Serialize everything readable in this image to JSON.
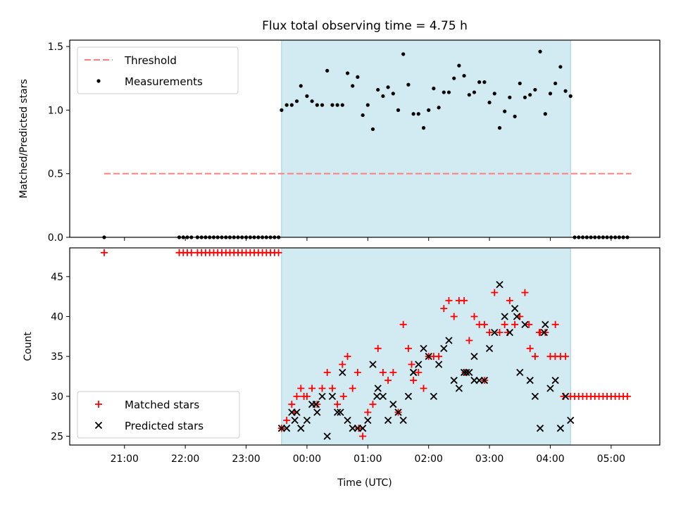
{
  "chart_data": [
    {
      "type": "scatter",
      "title": "Flux total observing time = 4.75 h",
      "xlabel": "",
      "ylabel": "Matched/Predicted stars",
      "ylim": [
        0,
        1.55
      ],
      "yticks": [
        "0.0",
        "0.5",
        "1.0",
        "1.5"
      ],
      "shaded_interval": {
        "start": 23.583,
        "end": 28.333,
        "color": "#add8e6"
      },
      "grid": false,
      "legend_position": "upper-left",
      "series": [
        {
          "name": "Threshold",
          "style": "dashed-line",
          "color": "#ff7f7f",
          "x": [
            20.667,
            29.333
          ],
          "y": [
            0.5,
            0.5
          ]
        },
        {
          "name": "Measurements",
          "style": "dot",
          "color": "#000000",
          "x": [
            20.667,
            21.9,
            21.967,
            22.033,
            22.1,
            22.2,
            22.267,
            22.333,
            22.4,
            22.467,
            22.533,
            22.6,
            22.667,
            22.733,
            22.8,
            22.867,
            22.933,
            23.0,
            23.067,
            23.133,
            23.2,
            23.267,
            23.333,
            23.4,
            23.467,
            23.533,
            23.583,
            23.667,
            23.75,
            23.833,
            23.9,
            24.0,
            24.083,
            24.167,
            24.25,
            24.333,
            24.417,
            24.5,
            24.583,
            24.667,
            24.75,
            24.833,
            24.917,
            25.0,
            25.083,
            25.167,
            25.25,
            25.333,
            25.417,
            25.5,
            25.583,
            25.667,
            25.75,
            25.833,
            25.917,
            26.0,
            26.083,
            26.167,
            26.25,
            26.333,
            26.417,
            26.5,
            26.583,
            26.667,
            26.75,
            26.833,
            26.917,
            27.0,
            27.083,
            27.167,
            27.25,
            27.333,
            27.417,
            27.5,
            27.583,
            27.667,
            27.75,
            27.833,
            27.917,
            28.0,
            28.083,
            28.167,
            28.25,
            28.333,
            28.4,
            28.467,
            28.533,
            28.6,
            28.667,
            28.733,
            28.8,
            28.867,
            28.933,
            29.0,
            29.067,
            29.133,
            29.2,
            29.267
          ],
          "y": [
            0,
            0,
            0,
            0,
            0,
            0,
            0,
            0,
            0,
            0,
            0,
            0,
            0,
            0,
            0,
            0,
            0,
            0,
            0,
            0,
            0,
            0,
            0,
            0,
            0,
            0,
            1.0,
            1.04,
            1.04,
            1.07,
            1.19,
            1.11,
            1.07,
            1.04,
            1.04,
            1.31,
            1.04,
            1.04,
            1.04,
            1.29,
            1.19,
            1.26,
            0.96,
            1.04,
            0.85,
            1.16,
            1.11,
            1.18,
            1.13,
            1.0,
            1.44,
            1.2,
            0.97,
            0.97,
            0.86,
            1.0,
            1.17,
            1.02,
            1.14,
            1.14,
            1.25,
            1.35,
            1.27,
            1.12,
            1.14,
            1.22,
            1.22,
            1.06,
            1.13,
            0.86,
            0.99,
            1.1,
            0.95,
            1.21,
            1.1,
            1.12,
            1.16,
            1.46,
            0.97,
            1.13,
            1.21,
            1.34,
            1.15,
            1.11,
            0,
            0,
            0,
            0,
            0,
            0,
            0,
            0,
            0,
            0,
            0,
            0,
            0,
            0
          ]
        }
      ]
    },
    {
      "type": "scatter",
      "title": "",
      "xlabel": "Time (UTC)",
      "ylabel": "Count",
      "ylim": [
        23.9,
        48.6
      ],
      "yticks": [
        "25",
        "30",
        "35",
        "40",
        "45"
      ],
      "xticks": [
        "21:00",
        "22:00",
        "23:00",
        "00:00",
        "01:00",
        "02:00",
        "03:00",
        "04:00",
        "05:00"
      ],
      "shaded_interval": {
        "start": 23.583,
        "end": 28.333,
        "color": "#add8e6"
      },
      "grid": false,
      "legend_position": "lower-left",
      "series": [
        {
          "name": "Matched stars",
          "style": "plus",
          "color": "#ff0000",
          "x": [
            20.667,
            21.9,
            21.967,
            22.033,
            22.1,
            22.2,
            22.267,
            22.333,
            22.4,
            22.467,
            22.533,
            22.6,
            22.667,
            22.733,
            22.8,
            22.867,
            22.933,
            23.0,
            23.067,
            23.133,
            23.2,
            23.267,
            23.333,
            23.4,
            23.467,
            23.533,
            23.583,
            23.667,
            23.75,
            23.833,
            23.9,
            24.0,
            24.083,
            24.167,
            24.25,
            24.333,
            24.417,
            24.5,
            24.583,
            24.667,
            24.75,
            24.833,
            24.917,
            25.0,
            25.083,
            25.167,
            25.25,
            25.333,
            25.417,
            25.5,
            25.583,
            25.667,
            25.75,
            25.833,
            25.917,
            26.0,
            26.083,
            26.167,
            26.25,
            26.333,
            26.417,
            26.5,
            26.583,
            26.667,
            26.75,
            26.833,
            26.917,
            27.0,
            27.083,
            27.167,
            27.25,
            27.333,
            27.417,
            27.5,
            27.583,
            27.667,
            27.75,
            27.833,
            27.917,
            28.0,
            28.083,
            28.167,
            28.25,
            28.333,
            28.4,
            28.467,
            28.533,
            28.6,
            28.667,
            28.733,
            28.8,
            28.867,
            28.933,
            29.0,
            29.067,
            29.133,
            29.2,
            29.267,
            23.8,
            23.95,
            24.6,
            24.85,
            25.72,
            26.6,
            26.92,
            27.3,
            27.65,
            27.82,
            28.08,
            28.22
          ],
          "y": [
            48,
            48,
            48,
            48,
            48,
            48,
            48,
            48,
            48,
            48,
            48,
            48,
            48,
            48,
            48,
            48,
            48,
            48,
            48,
            48,
            48,
            48,
            48,
            48,
            48,
            48,
            26,
            27,
            29,
            30,
            31,
            30,
            31,
            29,
            31,
            33,
            31,
            29,
            34,
            35,
            31,
            33,
            25,
            28,
            29,
            36,
            33,
            32,
            33,
            28,
            39,
            36,
            32,
            33,
            31,
            35,
            35,
            35,
            41,
            42,
            40,
            42,
            42,
            37,
            40,
            39,
            39,
            38,
            43,
            38,
            39,
            42,
            39,
            40,
            43,
            36,
            35,
            38,
            38,
            35,
            39,
            35,
            35,
            30,
            30,
            30,
            30,
            30,
            30,
            30,
            30,
            30,
            30,
            30,
            30,
            30,
            30,
            30,
            28,
            30,
            30,
            26,
            34,
            33,
            32,
            38,
            39,
            38,
            35,
            30
          ]
        },
        {
          "name": "Predicted stars",
          "style": "x",
          "color": "#000000",
          "x": [
            23.583,
            23.667,
            23.75,
            23.833,
            23.9,
            24.0,
            24.083,
            24.167,
            24.25,
            24.333,
            24.417,
            24.5,
            24.583,
            24.667,
            24.75,
            24.833,
            24.917,
            25.0,
            25.083,
            25.167,
            25.25,
            25.333,
            25.417,
            25.5,
            25.583,
            25.667,
            25.75,
            25.833,
            25.917,
            26.0,
            26.083,
            26.167,
            26.25,
            26.333,
            26.417,
            26.5,
            26.583,
            26.667,
            26.75,
            26.833,
            26.917,
            27.0,
            27.083,
            27.167,
            27.25,
            27.333,
            27.417,
            27.5,
            27.583,
            27.667,
            27.75,
            27.833,
            27.917,
            28.0,
            28.083,
            28.167,
            28.25,
            28.333,
            23.8,
            24.15,
            24.55,
            25.15,
            25.75,
            26.62,
            26.75,
            27.45,
            27.9
          ],
          "y": [
            26,
            26,
            28,
            28,
            26,
            27,
            29,
            28,
            30,
            25,
            30,
            28,
            33,
            27,
            26,
            26,
            26,
            27,
            34,
            31,
            30,
            27,
            29,
            28,
            27,
            30,
            33,
            34,
            36,
            35,
            30,
            34,
            36,
            37,
            32,
            31,
            33,
            33,
            35,
            32,
            32,
            36,
            38,
            44,
            40,
            38,
            41,
            33,
            39,
            32,
            30,
            26,
            39,
            31,
            32,
            26,
            30,
            27,
            27,
            29,
            28,
            30,
            33,
            33,
            32,
            40,
            38
          ]
        }
      ]
    }
  ]
}
